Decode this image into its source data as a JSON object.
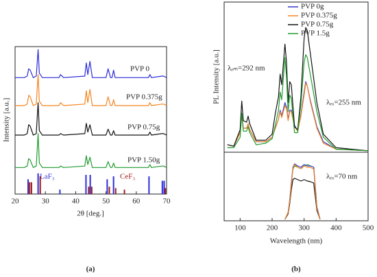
{
  "chart_data": [
    {
      "type": "line",
      "caption": "(a)",
      "x_label": "2θ [deg.]",
      "y_label": "Intensity [a.u.]",
      "xlim": [
        20,
        70
      ],
      "xticks": [
        20,
        30,
        40,
        50,
        60,
        70
      ],
      "ylim": [
        0,
        100
      ],
      "x": [
        20,
        23,
        24,
        24.5,
        25,
        26,
        27,
        27.6,
        28,
        29,
        34.5,
        35,
        36,
        43,
        43.5,
        44,
        44.7,
        45.5,
        50,
        50.7,
        51.5,
        52,
        52.5,
        53,
        55,
        64,
        64.5,
        65,
        68.5,
        69,
        70
      ],
      "series": [
        {
          "name": "PVP 0",
          "color": "#2b2bd9",
          "values": [
            79,
            79,
            80,
            85,
            84,
            79,
            80,
            98,
            82,
            79,
            79,
            81,
            79,
            80,
            89,
            81,
            90,
            79,
            79,
            85,
            79,
            79,
            84,
            79,
            79,
            79,
            81,
            79,
            80,
            80,
            79
          ]
        },
        {
          "name": "PVP 0.375g",
          "color": "#f5841f",
          "values": [
            60,
            60,
            61,
            67,
            66,
            60,
            61,
            81,
            63,
            60,
            60,
            62,
            60,
            61,
            70,
            62,
            71,
            60,
            60,
            66,
            60,
            60,
            64,
            60,
            60,
            60,
            62,
            60,
            61,
            61,
            60
          ]
        },
        {
          "name": "PVP 0.75g",
          "color": "#111111",
          "values": [
            40,
            40,
            41,
            47,
            46,
            40,
            41,
            62,
            43,
            40,
            40,
            41,
            40,
            41,
            48,
            42,
            47,
            40,
            40,
            44,
            40,
            40,
            43,
            40,
            40,
            40,
            42,
            40,
            41,
            41,
            40
          ]
        },
        {
          "name": "PVP 1.50g",
          "color": "#1f9a2e",
          "values": [
            18,
            18,
            19,
            24,
            23,
            18,
            19,
            41,
            21,
            18,
            18,
            19,
            18,
            19,
            26,
            20,
            25,
            18,
            18,
            22,
            18,
            18,
            21,
            18,
            18,
            18,
            20,
            18,
            19,
            19,
            18
          ]
        }
      ],
      "references": [
        {
          "name": "LaF₃",
          "color": "#2b2bd9",
          "positions": [
            24.3,
            27.6,
            34.8,
            43.4,
            44.8,
            50.4,
            52.5,
            64.2,
            68.6,
            69.2
          ],
          "values": [
            10,
            14,
            3,
            13,
            13,
            10,
            12,
            12,
            9,
            9
          ]
        },
        {
          "name": "CeF₃",
          "color": "#a01818",
          "positions": [
            24.8,
            25.4,
            28.3,
            44.3,
            45.3,
            51.1,
            53.2,
            56.1,
            69.6
          ],
          "values": [
            8,
            8,
            12,
            5,
            5,
            5,
            4,
            3,
            4
          ]
        }
      ]
    },
    {
      "type": "line",
      "caption": "(b)",
      "y_label": "PL Intensity [a.u.]",
      "xlim": [
        50,
        500
      ],
      "ylim": [
        0,
        100
      ],
      "annotations": [
        "λₑₘ=292 nm",
        "λₑₓ=255 nm"
      ],
      "x": [
        60,
        80,
        100,
        105,
        110,
        120,
        125,
        130,
        150,
        180,
        200,
        210,
        220,
        225,
        230,
        240,
        245,
        250,
        255,
        260,
        270,
        280,
        290,
        300,
        305,
        310,
        320,
        340,
        360,
        400,
        500
      ],
      "series": [
        {
          "name": "PVP 0g",
          "color": "#3535c8",
          "values": [
            5,
            4,
            13,
            25,
            16,
            16,
            19,
            15,
            7,
            7,
            10,
            16,
            22,
            28,
            24,
            33,
            30,
            22,
            28,
            28,
            18,
            14,
            25,
            40,
            47,
            44,
            34,
            17,
            7,
            2,
            1
          ]
        },
        {
          "name": "PVP 0.375g",
          "color": "#f5841f",
          "values": [
            5,
            4,
            13,
            24,
            16,
            16,
            19,
            15,
            7,
            7,
            10,
            16,
            22,
            27,
            23,
            31,
            29,
            21,
            27,
            27,
            17,
            14,
            24,
            38,
            46,
            44,
            33,
            16,
            6,
            2,
            1
          ]
        },
        {
          "name": "PVP 0.75g",
          "color": "#111111",
          "values": [
            5,
            4,
            15,
            34,
            21,
            20,
            24,
            19,
            8,
            8,
            12,
            26,
            37,
            52,
            45,
            72,
            60,
            33,
            47,
            45,
            17,
            15,
            37,
            76,
            83,
            81,
            65,
            33,
            12,
            3,
            1
          ]
        },
        {
          "name": "PVP 1.5g",
          "color": "#1f9a2e",
          "values": [
            3,
            3,
            10,
            26,
            14,
            14,
            17,
            13,
            5,
            6,
            9,
            18,
            28,
            40,
            35,
            63,
            50,
            27,
            38,
            36,
            13,
            13,
            32,
            60,
            65,
            63,
            51,
            27,
            10,
            2,
            1
          ]
        }
      ]
    },
    {
      "type": "line",
      "x_label": "Wavelength (nm)",
      "xlim": [
        50,
        500
      ],
      "xticks": [
        100,
        200,
        300,
        400,
        500
      ],
      "ylim": [
        0,
        100
      ],
      "annotations": [
        "λₑₓ=70 nm"
      ],
      "x": [
        240,
        250,
        255,
        260,
        265,
        270,
        280,
        290,
        300,
        310,
        320,
        330,
        340,
        350
      ],
      "series": [
        {
          "color": "#111111",
          "values": [
            2,
            10,
            25,
            45,
            60,
            62,
            60,
            58,
            60,
            58,
            57,
            55,
            15,
            2
          ]
        },
        {
          "color": "#1f9a2e",
          "values": [
            2,
            12,
            30,
            55,
            75,
            80,
            78,
            76,
            80,
            82,
            80,
            78,
            20,
            2
          ]
        },
        {
          "color": "#3535c8",
          "values": [
            2,
            12,
            30,
            55,
            78,
            83,
            80,
            78,
            82,
            80,
            80,
            78,
            20,
            2
          ]
        },
        {
          "color": "#f5841f",
          "values": [
            2,
            12,
            28,
            52,
            76,
            82,
            78,
            76,
            80,
            78,
            78,
            75,
            18,
            2
          ]
        }
      ]
    }
  ]
}
